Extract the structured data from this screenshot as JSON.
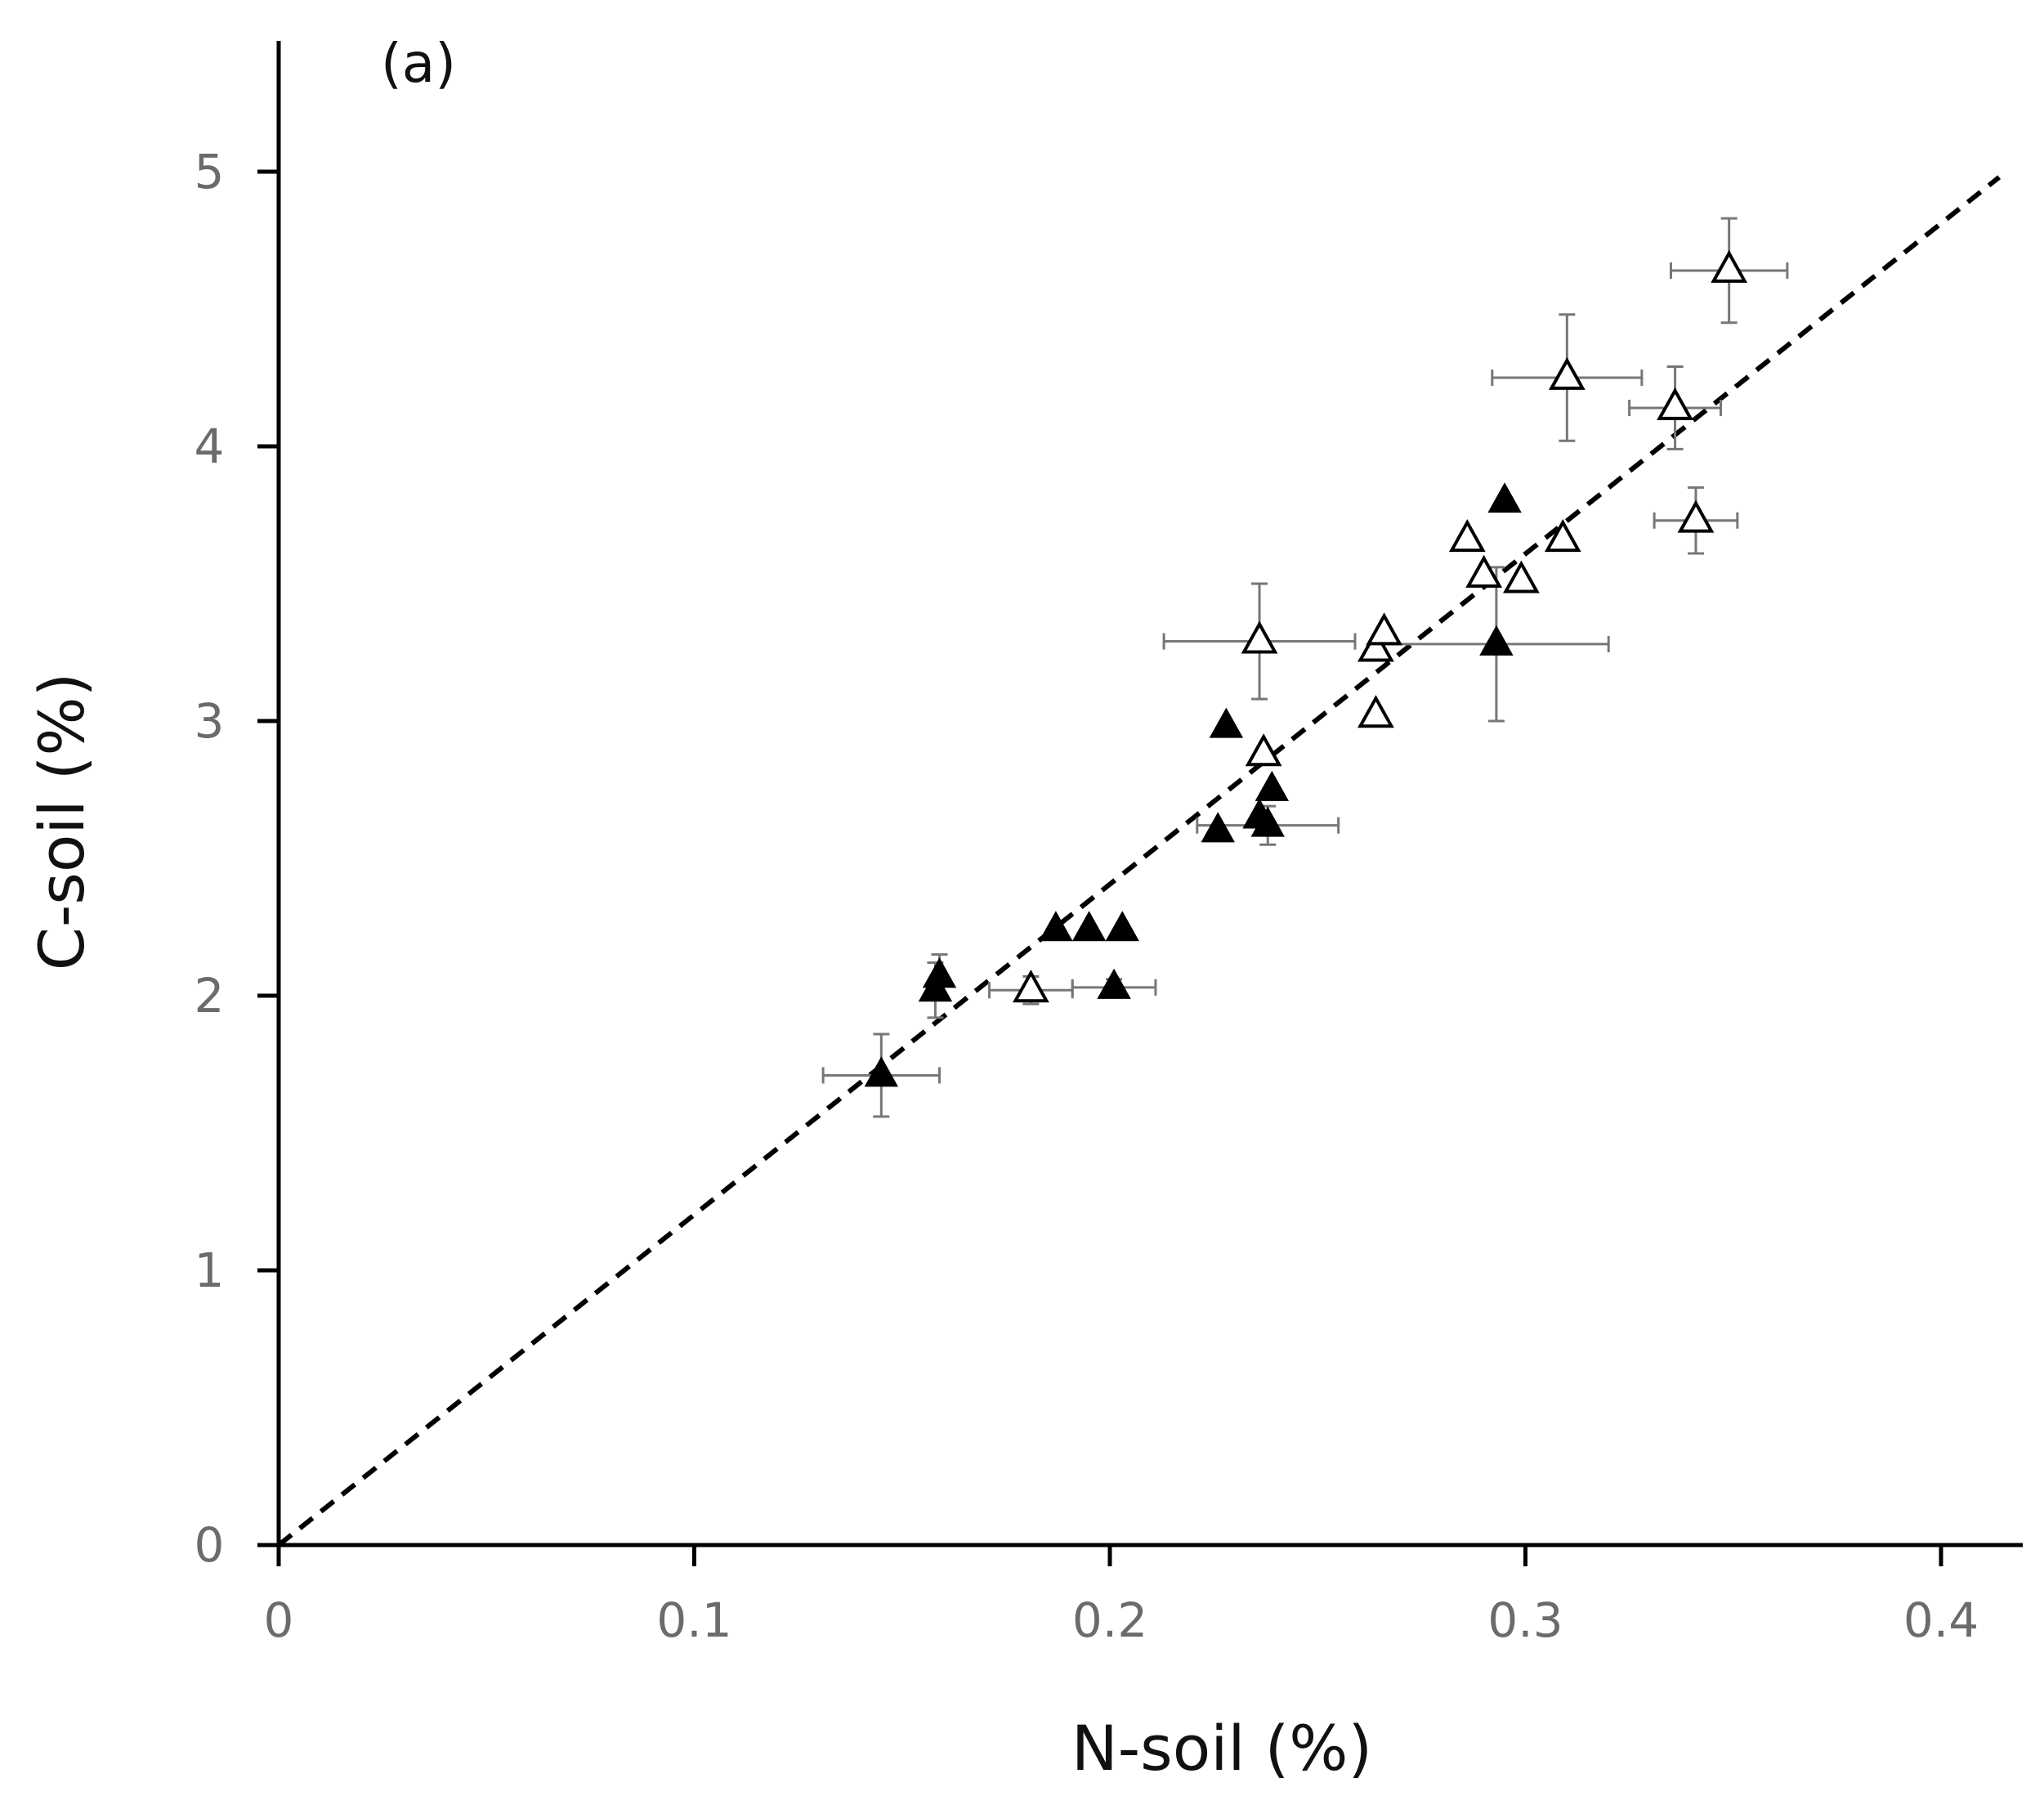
{
  "chart_data": {
    "type": "scatter",
    "panel_label": "(a)",
    "xlabel": "N-soil (%)",
    "ylabel": "C-soil (%)",
    "xlim": [
      0,
      0.42
    ],
    "ylim": [
      0,
      5.5
    ],
    "x_ticks": [
      "0",
      "0.1",
      "0.2",
      "0.3",
      "0.4"
    ],
    "y_ticks": [
      "0",
      "1",
      "2",
      "3",
      "4",
      "5"
    ],
    "grid": false,
    "fit_line": {
      "style": "dashed",
      "x": [
        0,
        0.414
      ],
      "y": [
        0,
        4.98
      ]
    },
    "series": [
      {
        "name": "filled",
        "marker": "filled-triangle",
        "color": "#000000",
        "points": [
          {
            "x": 0.145,
            "y": 1.71,
            "xerr": 0.014,
            "yerr": 0.15
          },
          {
            "x": 0.158,
            "y": 2.02,
            "xerr": 0,
            "yerr": 0.1
          },
          {
            "x": 0.159,
            "y": 2.07,
            "xerr": 0,
            "yerr": 0.08
          },
          {
            "x": 0.187,
            "y": 2.24,
            "xerr": 0,
            "yerr": 0
          },
          {
            "x": 0.195,
            "y": 2.24,
            "xerr": 0,
            "yerr": 0
          },
          {
            "x": 0.201,
            "y": 2.03,
            "xerr": 0.01,
            "yerr": 0.03
          },
          {
            "x": 0.203,
            "y": 2.24,
            "xerr": 0,
            "yerr": 0
          },
          {
            "x": 0.226,
            "y": 2.6,
            "xerr": 0,
            "yerr": 0
          },
          {
            "x": 0.228,
            "y": 2.98,
            "xerr": 0,
            "yerr": 0
          },
          {
            "x": 0.236,
            "y": 2.65,
            "xerr": 0,
            "yerr": 0
          },
          {
            "x": 0.238,
            "y": 2.62,
            "xerr": 0.017,
            "yerr": 0.07
          },
          {
            "x": 0.239,
            "y": 2.75,
            "xerr": 0,
            "yerr": 0
          },
          {
            "x": 0.293,
            "y": 3.28,
            "xerr": 0.027,
            "yerr": 0.28
          },
          {
            "x": 0.295,
            "y": 3.8,
            "xerr": 0,
            "yerr": 0
          }
        ]
      },
      {
        "name": "open",
        "marker": "open-triangle",
        "color": "#000000",
        "points": [
          {
            "x": 0.181,
            "y": 2.02,
            "xerr": 0.01,
            "yerr": 0.05
          },
          {
            "x": 0.236,
            "y": 3.29,
            "xerr": 0.023,
            "yerr": 0.21
          },
          {
            "x": 0.237,
            "y": 2.88,
            "xerr": 0,
            "yerr": 0
          },
          {
            "x": 0.264,
            "y": 3.02,
            "xerr": 0,
            "yerr": 0
          },
          {
            "x": 0.264,
            "y": 3.26,
            "xerr": 0,
            "yerr": 0
          },
          {
            "x": 0.266,
            "y": 3.32,
            "xerr": 0,
            "yerr": 0
          },
          {
            "x": 0.286,
            "y": 3.66,
            "xerr": 0,
            "yerr": 0
          },
          {
            "x": 0.29,
            "y": 3.53,
            "xerr": 0,
            "yerr": 0
          },
          {
            "x": 0.299,
            "y": 3.51,
            "xerr": 0,
            "yerr": 0
          },
          {
            "x": 0.309,
            "y": 3.66,
            "xerr": 0,
            "yerr": 0
          },
          {
            "x": 0.31,
            "y": 4.25,
            "xerr": 0.018,
            "yerr": 0.23
          },
          {
            "x": 0.336,
            "y": 4.14,
            "xerr": 0.011,
            "yerr": 0.15
          },
          {
            "x": 0.341,
            "y": 3.73,
            "xerr": 0.01,
            "yerr": 0.12
          },
          {
            "x": 0.349,
            "y": 4.64,
            "xerr": 0.014,
            "yerr": 0.19
          }
        ]
      }
    ]
  }
}
